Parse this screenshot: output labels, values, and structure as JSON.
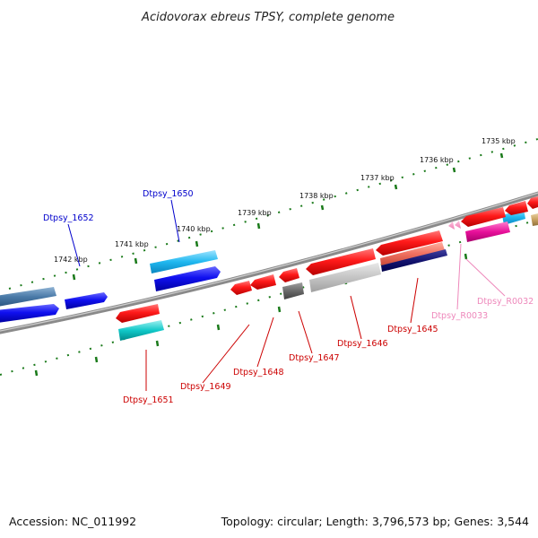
{
  "title": "Acidovorax ebreus TPSY, complete genome",
  "footer": {
    "accession": "Accession: NC_011992",
    "summary": "Topology: circular; Length: 3,796,573 bp; Genes: 3,544"
  },
  "scale_labels": [
    "1735 kbp",
    "1736 kbp",
    "1737 kbp",
    "1738 kbp",
    "1739 kbp",
    "1740 kbp",
    "1741 kbp",
    "1742 kbp"
  ],
  "gene_labels": [
    {
      "name": "Dtpsy_1652",
      "strand": "forward",
      "color": "#0000cc"
    },
    {
      "name": "Dtpsy_1650",
      "strand": "forward",
      "color": "#0000cc"
    },
    {
      "name": "Dtpsy_1651",
      "strand": "reverse",
      "color": "#cc0000"
    },
    {
      "name": "Dtpsy_1649",
      "strand": "reverse",
      "color": "#cc0000"
    },
    {
      "name": "Dtpsy_1648",
      "strand": "reverse",
      "color": "#cc0000"
    },
    {
      "name": "Dtpsy_1647",
      "strand": "reverse",
      "color": "#cc0000"
    },
    {
      "name": "Dtpsy_1646",
      "strand": "reverse",
      "color": "#cc0000"
    },
    {
      "name": "Dtpsy_1645",
      "strand": "reverse",
      "color": "#cc0000"
    },
    {
      "name": "Dtpsy_R0033",
      "strand": "reverse",
      "color": "#ee88bb"
    },
    {
      "name": "Dtpsy_R0032",
      "strand": "reverse",
      "color": "#ee88bb"
    }
  ],
  "colors": {
    "backbone": "#808080",
    "scale_ticks": "#1a7a1a",
    "forward_gene": "#0000ee",
    "reverse_gene": "#ee0000",
    "rna_gene": "#ee88bb"
  }
}
